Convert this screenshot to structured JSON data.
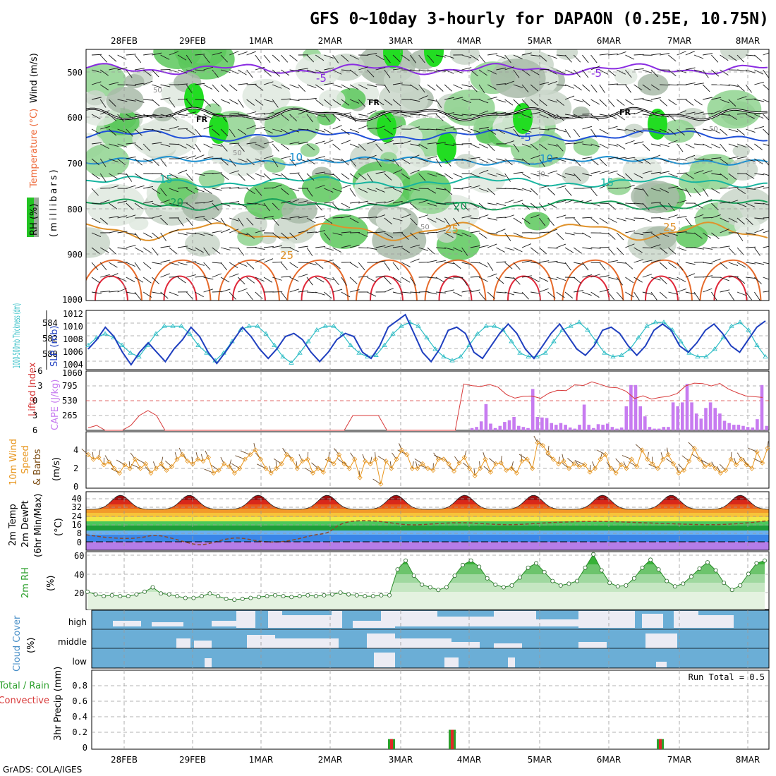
{
  "title": "GFS 0~10day 3-hourly for DAPAON (0.25E, 10.75N)",
  "footer": "GrADS: COLA/IGES",
  "date_labels": [
    "28FEB",
    "29FEB",
    "1MAR",
    "2MAR",
    "3MAR",
    "4MAR",
    "5MAR",
    "6MAR",
    "7MAR",
    "8MAR"
  ],
  "colors": {
    "grid": "#9a9a9a",
    "cloud_blue": "#6baed6",
    "cloud_white": "#f3f3f8",
    "rh_green": "#2ca02c",
    "wind": "#e8961e",
    "cape": "#c77bf0",
    "li": "#d83a3a",
    "slp": "#1f3fbf",
    "thick": "#2bbcc4"
  },
  "panels": {
    "upper": {
      "ylabel_wind": "Wind (m/s)",
      "ylabel_temp": "Temperature (°C)",
      "ylabel_rh": "RH (%)",
      "ylabel_press": "(millibars)",
      "pressure_ticks": [
        "500",
        "600",
        "700",
        "800",
        "900",
        "1000"
      ],
      "isotherm_labels": [
        {
          "text": "-5",
          "color": "#8a2be2"
        },
        {
          "text": "-5",
          "color": "#8a2be2"
        },
        {
          "text": "FR",
          "color": "#000000"
        },
        {
          "text": "FR",
          "color": "#000000"
        },
        {
          "text": "FR",
          "color": "#000000"
        },
        {
          "text": "-5",
          "color": "#1f4fd8"
        },
        {
          "text": "10",
          "color": "#1a8fd0"
        },
        {
          "text": "10",
          "color": "#1a8fd0"
        },
        {
          "text": "15",
          "color": "#18b5a0"
        },
        {
          "text": "15",
          "color": "#18b5a0"
        },
        {
          "text": "20",
          "color": "#16a05a"
        },
        {
          "text": "20",
          "color": "#16a05a"
        },
        {
          "text": "25",
          "color": "#e0922a"
        },
        {
          "text": "25",
          "color": "#e0922a"
        },
        {
          "text": "25",
          "color": "#e0922a"
        },
        {
          "text": "50",
          "color": "#8a8a8a"
        },
        {
          "text": "50",
          "color": "#8a8a8a"
        },
        {
          "text": "50",
          "color": "#8a8a8a"
        },
        {
          "text": "50",
          "color": "#8a8a8a"
        },
        {
          "text": "30",
          "color": "#8a8a8a"
        }
      ]
    },
    "slp": {
      "ylabel_thick": "1000-500mb Thickness (dm)",
      "ylabel_slp": "SLP (mb)",
      "left_ticks": [
        "584",
        "582",
        "580"
      ],
      "right_ticks": [
        "1012",
        "1010",
        "1008",
        "1006",
        "1004"
      ]
    },
    "cape": {
      "ylabel_li": "Lifted Index",
      "ylabel_cape": "CAPE (J/kg)",
      "left_ticks": [
        "-6",
        "-3",
        "0",
        "3",
        "6"
      ],
      "right_ticks": [
        "1060",
        "795",
        "530",
        "265"
      ]
    },
    "wind": {
      "ylabel_1": "10m Wind",
      "ylabel_2": "Speed",
      "ylabel_3": "& Barbs",
      "ylabel_unit": "(m/s)",
      "ticks": [
        "4",
        "2",
        "0"
      ]
    },
    "temp": {
      "ylabel_1": "2m Temp",
      "ylabel_2": "2m DewPt",
      "ylabel_3": "(6hr Min/Max)",
      "ylabel_unit": "(°C)",
      "ticks": [
        "40",
        "32",
        "24",
        "16",
        "8",
        "0"
      ]
    },
    "rh": {
      "ylabel": "2m RH",
      "ylabel_unit": "(%)",
      "ticks": [
        "60",
        "40",
        "20"
      ]
    },
    "cloud": {
      "ylabel": "Cloud Cover",
      "ylabel_unit": "(%)",
      "levels": [
        "high",
        "middle",
        "low"
      ]
    },
    "precip": {
      "ylabel_1": "Total / Rain",
      "ylabel_2": "Convective",
      "ylabel_3": "3hr Precip (mm)",
      "ticks": [
        "0.8",
        "0.6",
        "0.4",
        "0.2",
        "0"
      ],
      "run_total": "Run Total = 0.5"
    }
  },
  "chart_data": [
    {
      "type": "line",
      "title": "SLP (mb)",
      "x": "3-hourly, 28FEB to 8MAR",
      "ylim": [
        1004,
        1012
      ],
      "series": [
        {
          "name": "SLP (mb)",
          "values": [
            1006.5,
            1008,
            1010,
            1008.5,
            1006,
            1004,
            1006,
            1007.5,
            1006,
            1004.5,
            1006.5,
            1008,
            1010,
            1008.5,
            1006,
            1004.2,
            1006,
            1008,
            1010,
            1008.5,
            1006.5,
            1005,
            1006.5,
            1008.5,
            1009,
            1008,
            1006,
            1004.5,
            1006,
            1008,
            1009,
            1008.5,
            1006,
            1005,
            1007,
            1010,
            1011,
            1012,
            1009,
            1006,
            1004.5,
            1006.5,
            1009.5,
            1010,
            1009,
            1006,
            1005,
            1007,
            1009,
            1010.5,
            1009,
            1006.5,
            1005,
            1007,
            1009,
            1010.5,
            1008.5,
            1006.5,
            1005.5,
            1007,
            1009.5,
            1010,
            1009,
            1007,
            1005.5,
            1007,
            1009.5,
            1010.5,
            1009.5,
            1007,
            1006,
            1007.5,
            1009.5,
            1010.5,
            1009,
            1007,
            1006,
            1008,
            1010,
            1011
          ]
        }
      ]
    },
    {
      "type": "line",
      "title": "1000-500mb Thickness (dm)",
      "ylim": [
        578.5,
        585.5
      ],
      "series": [
        {
          "name": "1000-500mb Thickness (dm)",
          "values": [
            581.5,
            582.5,
            583,
            582.5,
            581.5,
            580.5,
            580,
            581.5,
            583,
            584,
            584,
            584,
            583,
            581.5,
            580.5,
            579.5,
            580.5,
            582,
            583.5,
            584,
            584,
            583,
            581.5,
            580,
            579.2,
            580.5,
            582,
            583.5,
            584,
            584,
            583,
            581.5,
            580.5,
            580,
            580.2,
            581.5,
            583,
            584,
            584.5,
            584,
            582.5,
            581,
            580,
            579.5,
            580,
            581.5,
            583,
            584,
            584,
            583.5,
            582,
            580.5,
            580,
            580,
            580.5,
            582,
            583.5,
            584,
            584.5,
            583.5,
            582,
            580.5,
            580,
            580.2,
            581,
            582.5,
            584,
            584.5,
            584.5,
            583.5,
            582,
            580.5,
            580,
            580,
            581,
            582.5,
            584,
            584.5,
            583.5,
            581.5,
            580
          ]
        }
      ]
    },
    {
      "type": "bar",
      "title": "CAPE (J/kg)",
      "ylim": [
        0,
        1060
      ],
      "values": [
        0,
        0,
        0,
        0,
        0,
        0,
        0,
        0,
        0,
        0,
        0,
        0,
        0,
        0,
        0,
        0,
        0,
        0,
        0,
        0,
        0,
        0,
        0,
        0,
        0,
        0,
        0,
        0,
        0,
        0,
        0,
        0,
        0,
        0,
        0,
        0,
        0,
        0,
        0,
        0,
        0,
        0,
        0,
        0,
        0,
        0,
        0,
        0,
        0,
        0,
        0,
        0,
        0,
        0,
        0,
        0,
        0,
        0,
        0,
        0,
        0,
        0,
        0,
        0,
        0,
        0,
        0,
        0,
        0,
        0,
        0,
        0,
        0,
        0,
        0,
        0,
        0,
        0,
        0,
        0,
        0,
        0,
        40,
        60,
        160,
        470,
        120,
        40,
        80,
        150,
        180,
        240,
        80,
        60,
        40,
        740,
        240,
        230,
        220,
        130,
        100,
        130,
        100,
        50,
        30,
        100,
        460,
        100,
        40,
        110,
        100,
        120,
        60,
        30,
        50,
        430,
        810,
        810,
        430,
        250,
        60,
        30,
        30,
        60,
        60,
        500,
        430,
        500,
        830,
        500,
        300,
        210,
        400,
        500,
        400,
        300,
        170,
        130,
        100,
        100,
        80,
        60,
        50,
        200,
        810,
        80
      ]
    },
    {
      "type": "line",
      "title": "10m Wind Speed (m/s)",
      "ylim": [
        0,
        5
      ],
      "series": [
        {
          "name": "10m Wind Speed",
          "values": [
            3.5,
            3,
            3.2,
            2.4,
            2.7,
            2,
            1.5,
            2.4,
            2,
            3,
            2,
            2.5,
            1.5,
            2,
            2.5,
            1.8,
            2.2,
            3,
            3.5,
            2.8,
            2.5,
            3,
            2.8,
            3.2,
            1.5,
            1.8,
            2.5,
            2.2,
            1.5,
            2,
            3,
            3.5,
            4,
            3,
            2,
            1.5,
            2,
            2.5,
            3.5,
            3,
            2,
            2.8,
            3,
            1.5,
            2,
            1.6,
            3,
            2.5,
            3.5,
            2.5,
            2,
            3,
            1,
            2.8,
            2.5,
            3,
            0.3,
            2.8,
            2,
            3,
            4,
            3.5,
            2,
            2,
            2.5,
            2,
            1.8,
            3,
            3,
            2.5,
            1.7,
            2.6,
            3.2,
            2,
            1.2,
            2,
            3,
            1.6,
            2.5,
            2.6,
            1.8,
            2,
            1.5,
            2.8,
            3,
            2,
            4.8,
            4.5,
            3.7,
            3,
            2.5,
            2.8,
            2,
            2.5,
            2.2,
            2.4,
            1.6,
            2,
            3,
            3.5,
            2,
            1.5,
            2.4,
            2,
            3,
            2.2,
            4,
            3,
            2.5,
            2,
            3,
            3.5,
            2.5,
            1.5,
            1.8,
            2.8,
            4.2,
            3,
            2.2,
            2.4,
            2,
            1.5,
            1.8,
            3,
            2.4,
            3,
            2.4,
            2,
            3.8,
            2.6,
            4.2
          ]
        }
      ]
    },
    {
      "type": "line",
      "title": "2m RH (%)",
      "ylim": [
        0,
        65
      ],
      "series": [
        {
          "name": "2m RH (%)",
          "values": [
            20,
            17,
            15,
            16,
            15,
            15,
            17,
            20,
            25,
            18,
            17,
            15,
            13,
            13,
            15,
            18,
            15,
            12,
            11,
            12,
            13,
            14,
            15,
            16,
            15,
            14,
            15,
            16,
            15,
            16,
            17,
            19,
            17,
            16,
            15,
            15,
            16,
            16,
            45,
            55,
            38,
            28,
            25,
            22,
            25,
            38,
            50,
            55,
            48,
            35,
            28,
            25,
            27,
            36,
            47,
            52,
            42,
            32,
            27,
            29,
            32,
            47,
            62,
            44,
            30,
            26,
            27,
            35,
            47,
            56,
            45,
            32,
            26,
            29,
            37,
            46,
            53,
            44,
            30,
            22,
            27,
            40,
            52,
            55
          ]
        }
      ]
    },
    {
      "type": "bar",
      "title": "3hr Precip (mm)",
      "ylim": [
        0,
        1
      ],
      "categories": [
        "3MAR",
        "4MAR",
        "7MAR"
      ],
      "values": [
        0.13,
        0.25,
        0.13
      ]
    }
  ]
}
